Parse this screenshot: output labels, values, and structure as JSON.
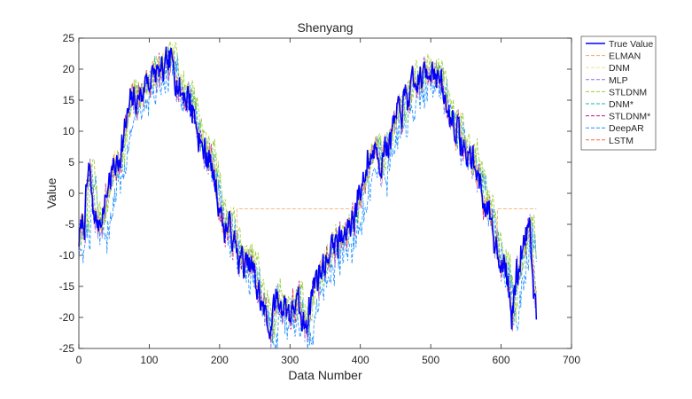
{
  "chart_data": {
    "type": "line",
    "title": "Shenyang",
    "xlabel": "Data Number",
    "ylabel": "Value",
    "xlim": [
      0,
      700
    ],
    "ylim": [
      -25,
      25
    ],
    "xticks": [
      0,
      100,
      200,
      300,
      400,
      500,
      600,
      700
    ],
    "yticks": [
      -25,
      -20,
      -15,
      -10,
      -5,
      0,
      5,
      10,
      15,
      20,
      25
    ],
    "xtick_labels": [
      "0",
      "100",
      "200",
      "300",
      "400",
      "500",
      "600",
      "700"
    ],
    "ytick_labels": [
      "-25",
      "-20",
      "-15",
      "-10",
      "-5",
      "0",
      "5",
      "10",
      "15",
      "20",
      "25"
    ],
    "legend_position": "outside-top-right",
    "truth_anchors": {
      "x": [
        0,
        8,
        14,
        20,
        28,
        36,
        45,
        55,
        65,
        75,
        85,
        95,
        105,
        115,
        125,
        135,
        145,
        155,
        165,
        175,
        185,
        195,
        205,
        215,
        225,
        235,
        245,
        255,
        265,
        272,
        280,
        290,
        300,
        310,
        320,
        330,
        340,
        350,
        360,
        370,
        380,
        390,
        400,
        410,
        420,
        430,
        440,
        450,
        460,
        470,
        480,
        490,
        500,
        510,
        520,
        530,
        540,
        550,
        560,
        570,
        580,
        590,
        600,
        610,
        615,
        620,
        630,
        640,
        645,
        650
      ],
      "y": [
        -7,
        -4,
        4,
        -3,
        -5,
        -2,
        3,
        5,
        10,
        15,
        15,
        18,
        19,
        19,
        20,
        21,
        16,
        16,
        12,
        7,
        6,
        1,
        -5,
        -6,
        -10,
        -12,
        -12,
        -16,
        -20,
        -22,
        -17,
        -18,
        -19,
        -18,
        -22,
        -16,
        -13,
        -11,
        -8,
        -8,
        -7,
        -3,
        0,
        5,
        8,
        6,
        9,
        11,
        14,
        16,
        17,
        19,
        21,
        19,
        14,
        12,
        9,
        6,
        5,
        2,
        -4,
        -7,
        -10,
        -15,
        -20,
        -15,
        -9,
        -4,
        -12,
        -19
      ]
    },
    "series": [
      {
        "name": "True Value",
        "color": "#0000ff",
        "dash": "solid",
        "width": 1.5,
        "lag": 0,
        "noise": 0.9,
        "bias": 0,
        "seed": 11
      },
      {
        "name": "ELMAN",
        "color": "#f4a460",
        "dash": "dashed",
        "width": 0.8,
        "lag": 0,
        "noise": 0.6,
        "bias": 0,
        "seed": 23,
        "floor_from": 225,
        "floor_to": 400,
        "floor": -2.5,
        "floor2_from": 595,
        "floor2": -2.5
      },
      {
        "name": "DNM",
        "color": "#f0e68c",
        "dash": "dashed",
        "width": 0.8,
        "lag": 2,
        "noise": 0.8,
        "bias": 0.3,
        "seed": 37
      },
      {
        "name": "MLP",
        "color": "#9370db",
        "dash": "dashed",
        "width": 0.8,
        "lag": 1,
        "noise": 1.5,
        "bias": -0.3,
        "seed": 41
      },
      {
        "name": "STLDNM",
        "color": "#9acd32",
        "dash": "dashed",
        "width": 0.8,
        "lag": 6,
        "noise": 0.7,
        "bias": 1.2,
        "seed": 53
      },
      {
        "name": "DNM*",
        "color": "#20b2aa",
        "dash": "dashed",
        "width": 0.8,
        "lag": 3,
        "noise": 0.8,
        "bias": 0.2,
        "seed": 67
      },
      {
        "name": "STLDNM*",
        "color": "#c71585",
        "dash": "dashed",
        "width": 0.8,
        "lag": 1,
        "noise": 1.6,
        "bias": 0,
        "seed": 79
      },
      {
        "name": "DeepAR",
        "color": "#1e90ff",
        "dash": "dashed",
        "width": 0.8,
        "lag": 8,
        "noise": 1.8,
        "bias": -1.8,
        "seed": 83
      },
      {
        "name": "LSTM",
        "color": "#ff6347",
        "dash": "dashed",
        "width": 0.8,
        "lag": 1,
        "noise": 0.7,
        "bias": 0,
        "seed": 97
      }
    ],
    "n_points": 651
  }
}
